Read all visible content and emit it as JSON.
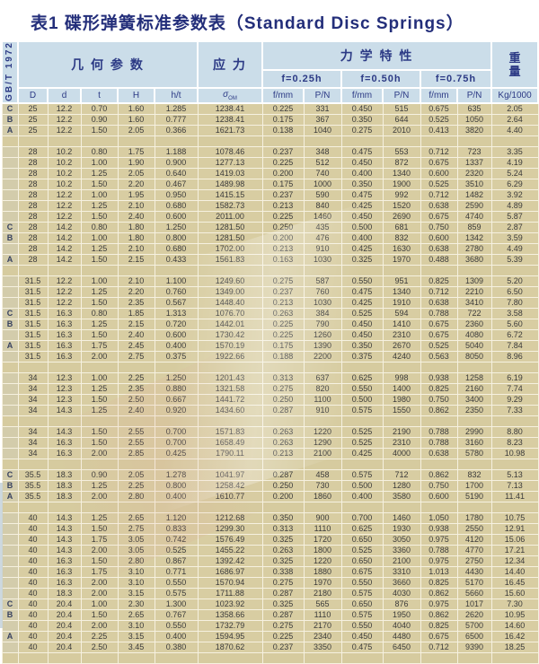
{
  "title": "表1 碟形弹簧标准参数表（Standard Disc Springs）",
  "table": {
    "standard_label": "GB/T 1972",
    "headers": {
      "geometry": "几 何 参 数",
      "stress": "应 力",
      "mechanics": "力 学 特 性",
      "weight_top": "重",
      "weight_bottom": "量",
      "deflections": [
        "f=0.25h",
        "f=0.50h",
        "f=0.75h"
      ],
      "columns": [
        "D",
        "d",
        "t",
        "H",
        "h/t"
      ],
      "sigma": "σ",
      "sigma_sub": "OM",
      "f_unit": "f/mm",
      "p_unit": "P/N",
      "weight_unit": "Kg/1000"
    },
    "rows": [
      [
        "C",
        "25",
        "12.2",
        "0.70",
        "1.60",
        "1.285",
        "1238.41",
        "0.225",
        "331",
        "0.450",
        "515",
        "0.675",
        "635",
        "2.05"
      ],
      [
        "B",
        "25",
        "12.2",
        "0.90",
        "1.60",
        "0.777",
        "1238.41",
        "0.175",
        "367",
        "0.350",
        "644",
        "0.525",
        "1050",
        "2.64"
      ],
      [
        "A",
        "25",
        "12.2",
        "1.50",
        "2.05",
        "0.366",
        "1621.73",
        "0.138",
        "1040",
        "0.275",
        "2010",
        "0.413",
        "3820",
        "4.40"
      ],
      "sep",
      [
        "",
        "28",
        "10.2",
        "0.80",
        "1.75",
        "1.188",
        "1078.46",
        "0.237",
        "348",
        "0.475",
        "553",
        "0.712",
        "723",
        "3.35"
      ],
      [
        "",
        "28",
        "10.2",
        "1.00",
        "1.90",
        "0.900",
        "1277.13",
        "0.225",
        "512",
        "0.450",
        "872",
        "0.675",
        "1337",
        "4.19"
      ],
      [
        "",
        "28",
        "10.2",
        "1.25",
        "2.05",
        "0.640",
        "1419.03",
        "0.200",
        "740",
        "0.400",
        "1340",
        "0.600",
        "2320",
        "5.24"
      ],
      [
        "",
        "28",
        "10.2",
        "1.50",
        "2.20",
        "0.467",
        "1489.98",
        "0.175",
        "1000",
        "0.350",
        "1900",
        "0.525",
        "3510",
        "6.29"
      ],
      [
        "",
        "28",
        "12.2",
        "1.00",
        "1.95",
        "0.950",
        "1415.15",
        "0.237",
        "590",
        "0.475",
        "992",
        "0.712",
        "1482",
        "3.92"
      ],
      [
        "",
        "28",
        "12.2",
        "1.25",
        "2.10",
        "0.680",
        "1582.73",
        "0.213",
        "840",
        "0.425",
        "1520",
        "0.638",
        "2590",
        "4.89"
      ],
      [
        "",
        "28",
        "12.2",
        "1.50",
        "2.40",
        "0.600",
        "2011.00",
        "0.225",
        "1460",
        "0.450",
        "2690",
        "0.675",
        "4740",
        "5.87"
      ],
      [
        "C",
        "28",
        "14.2",
        "0.80",
        "1.80",
        "1.250",
        "1281.50",
        "0.250",
        "435",
        "0.500",
        "681",
        "0.750",
        "859",
        "2.87"
      ],
      [
        "B",
        "28",
        "14.2",
        "1.00",
        "1.80",
        "0.800",
        "1281.50",
        "0.200",
        "476",
        "0.400",
        "832",
        "0.600",
        "1342",
        "3.59"
      ],
      [
        "",
        "28",
        "14.2",
        "1.25",
        "2.10",
        "0.680",
        "1702.00",
        "0.213",
        "910",
        "0.425",
        "1630",
        "0.638",
        "2780",
        "4.49"
      ],
      [
        "A",
        "28",
        "14.2",
        "1.50",
        "2.15",
        "0.433",
        "1561.83",
        "0.163",
        "1030",
        "0.325",
        "1970",
        "0.488",
        "3680",
        "5.39"
      ],
      "sep",
      [
        "",
        "31.5",
        "12.2",
        "1.00",
        "2.10",
        "1.100",
        "1249.60",
        "0.275",
        "587",
        "0.550",
        "951",
        "0.825",
        "1309",
        "5.20"
      ],
      [
        "",
        "31.5",
        "12.2",
        "1.25",
        "2.20",
        "0.760",
        "1349.00",
        "0.237",
        "760",
        "0.475",
        "1340",
        "0.712",
        "2210",
        "6.50"
      ],
      [
        "",
        "31.5",
        "12.2",
        "1.50",
        "2.35",
        "0.567",
        "1448.40",
        "0.213",
        "1030",
        "0.425",
        "1910",
        "0.638",
        "3410",
        "7.80"
      ],
      [
        "C",
        "31.5",
        "16.3",
        "0.80",
        "1.85",
        "1.313",
        "1076.70",
        "0.263",
        "384",
        "0.525",
        "594",
        "0.788",
        "722",
        "3.58"
      ],
      [
        "B",
        "31.5",
        "16.3",
        "1.25",
        "2.15",
        "0.720",
        "1442.01",
        "0.225",
        "790",
        "0.450",
        "1410",
        "0.675",
        "2360",
        "5.60"
      ],
      [
        "",
        "31.5",
        "16.3",
        "1.50",
        "2.40",
        "0.600",
        "1730.42",
        "0.225",
        "1260",
        "0.450",
        "2310",
        "0.675",
        "4080",
        "6.72"
      ],
      [
        "A",
        "31.5",
        "16.3",
        "1.75",
        "2.45",
        "0.400",
        "1570.19",
        "0.175",
        "1390",
        "0.350",
        "2670",
        "0.525",
        "5040",
        "7.84"
      ],
      [
        "",
        "31.5",
        "16.3",
        "2.00",
        "2.75",
        "0.375",
        "1922.66",
        "0.188",
        "2200",
        "0.375",
        "4240",
        "0.563",
        "8050",
        "8.96"
      ],
      "sep",
      [
        "",
        "34",
        "12.3",
        "1.00",
        "2.25",
        "1.250",
        "1201.43",
        "0.313",
        "637",
        "0.625",
        "998",
        "0.938",
        "1258",
        "6.19"
      ],
      [
        "",
        "34",
        "12.3",
        "1.25",
        "2.35",
        "0.880",
        "1321.58",
        "0.275",
        "820",
        "0.550",
        "1400",
        "0.825",
        "2160",
        "7.74"
      ],
      [
        "",
        "34",
        "12.3",
        "1.50",
        "2.50",
        "0.667",
        "1441.72",
        "0.250",
        "1100",
        "0.500",
        "1980",
        "0.750",
        "3400",
        "9.29"
      ],
      [
        "",
        "34",
        "14.3",
        "1.25",
        "2.40",
        "0.920",
        "1434.60",
        "0.287",
        "910",
        "0.575",
        "1550",
        "0.862",
        "2350",
        "7.33"
      ],
      "sep",
      [
        "",
        "34",
        "14.3",
        "1.50",
        "2.55",
        "0.700",
        "1571.83",
        "0.263",
        "1220",
        "0.525",
        "2190",
        "0.788",
        "2990",
        "8.80"
      ],
      [
        "",
        "34",
        "16.3",
        "1.50",
        "2.55",
        "0.700",
        "1658.49",
        "0.263",
        "1290",
        "0.525",
        "2310",
        "0.788",
        "3160",
        "8.23"
      ],
      [
        "",
        "34",
        "16.3",
        "2.00",
        "2.85",
        "0.425",
        "1790.11",
        "0.213",
        "2100",
        "0.425",
        "4000",
        "0.638",
        "5780",
        "10.98"
      ],
      "sep",
      [
        "C",
        "35.5",
        "18.3",
        "0.90",
        "2.05",
        "1.278",
        "1041.97",
        "0.287",
        "458",
        "0.575",
        "712",
        "0.862",
        "832",
        "5.13"
      ],
      [
        "B",
        "35.5",
        "18.3",
        "1.25",
        "2.25",
        "0.800",
        "1258.42",
        "0.250",
        "730",
        "0.500",
        "1280",
        "0.750",
        "1700",
        "7.13"
      ],
      [
        "A",
        "35.5",
        "18.3",
        "2.00",
        "2.80",
        "0.400",
        "1610.77",
        "0.200",
        "1860",
        "0.400",
        "3580",
        "0.600",
        "5190",
        "11.41"
      ],
      "sep",
      [
        "",
        "40",
        "14.3",
        "1.25",
        "2.65",
        "1.120",
        "1212.68",
        "0.350",
        "900",
        "0.700",
        "1460",
        "1.050",
        "1780",
        "10.75"
      ],
      [
        "",
        "40",
        "14.3",
        "1.50",
        "2.75",
        "0.833",
        "1299.30",
        "0.313",
        "1110",
        "0.625",
        "1930",
        "0.938",
        "2550",
        "12.91"
      ],
      [
        "",
        "40",
        "14.3",
        "1.75",
        "3.05",
        "0.742",
        "1576.49",
        "0.325",
        "1720",
        "0.650",
        "3050",
        "0.975",
        "4120",
        "15.06"
      ],
      [
        "",
        "40",
        "14.3",
        "2.00",
        "3.05",
        "0.525",
        "1455.22",
        "0.263",
        "1800",
        "0.525",
        "3360",
        "0.788",
        "4770",
        "17.21"
      ],
      [
        "",
        "40",
        "16.3",
        "1.50",
        "2.80",
        "0.867",
        "1392.42",
        "0.325",
        "1220",
        "0.650",
        "2100",
        "0.975",
        "2750",
        "12.34"
      ],
      [
        "",
        "40",
        "16.3",
        "1.75",
        "3.10",
        "0.771",
        "1686.97",
        "0.338",
        "1880",
        "0.675",
        "3310",
        "1.013",
        "4430",
        "14.40"
      ],
      [
        "",
        "40",
        "16.3",
        "2.00",
        "3.10",
        "0.550",
        "1570.94",
        "0.275",
        "1970",
        "0.550",
        "3660",
        "0.825",
        "5170",
        "16.45"
      ],
      [
        "",
        "40",
        "18.3",
        "2.00",
        "3.15",
        "0.575",
        "1711.88",
        "0.287",
        "2180",
        "0.575",
        "4030",
        "0.862",
        "5660",
        "15.60"
      ],
      [
        "C",
        "40",
        "20.4",
        "1.00",
        "2.30",
        "1.300",
        "1023.92",
        "0.325",
        "565",
        "0.650",
        "876",
        "0.975",
        "1017",
        "7.30"
      ],
      [
        "B",
        "40",
        "20.4",
        "1.50",
        "2.65",
        "0.767",
        "1358.66",
        "0.287",
        "1110",
        "0.575",
        "1950",
        "0.862",
        "2620",
        "10.95"
      ],
      [
        "",
        "40",
        "20.4",
        "2.00",
        "3.10",
        "0.550",
        "1732.79",
        "0.275",
        "2170",
        "0.550",
        "4040",
        "0.825",
        "5700",
        "14.60"
      ],
      [
        "A",
        "40",
        "20.4",
        "2.25",
        "3.15",
        "0.400",
        "1594.95",
        "0.225",
        "2340",
        "0.450",
        "4480",
        "0.675",
        "6500",
        "16.42"
      ],
      [
        "",
        "40",
        "20.4",
        "2.50",
        "3.45",
        "0.380",
        "1870.62",
        "0.237",
        "3350",
        "0.475",
        "6450",
        "0.712",
        "9390",
        "18.25"
      ],
      "sep"
    ]
  },
  "colors": {
    "title_text": "#232e7a",
    "header_bg": "#cbdde9",
    "header_text": "#2c3a85",
    "cell_bg": "#d8cda2",
    "grid_line": "#f6f1e0"
  }
}
